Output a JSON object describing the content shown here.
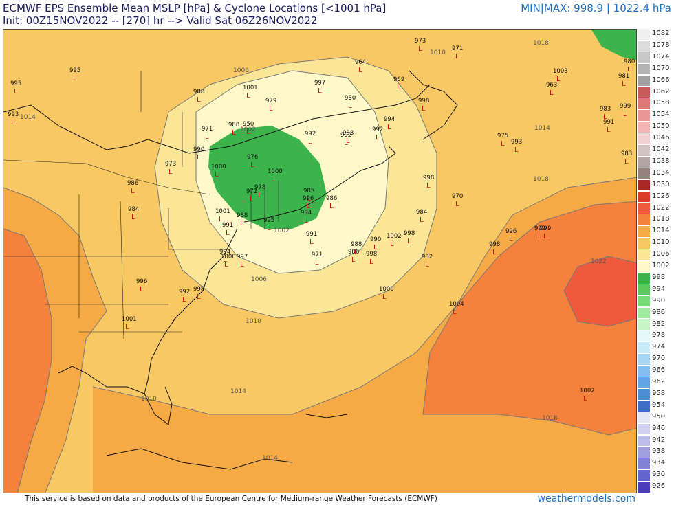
{
  "header": {
    "title_line1": "ECMWF EPS Ensemble Mean MSLP [hPa] & Cyclone Locations [<1001 hPa]",
    "title_line2": "Init: 00Z15NOV2022 -- [270] hr --> Valid Sat 06Z26NOV2022",
    "minmax": "MIN|MAX: 998.9 | 1022.4 hPa"
  },
  "colorbar": {
    "entries": [
      {
        "label": "1082",
        "color": "#f0f0f0"
      },
      {
        "label": "1078",
        "color": "#dcdcdc"
      },
      {
        "label": "1074",
        "color": "#c8c8c8"
      },
      {
        "label": "1070",
        "color": "#b4b4b4"
      },
      {
        "label": "1066",
        "color": "#a0a0a0"
      },
      {
        "label": "1062",
        "color": "#c85a5a"
      },
      {
        "label": "1058",
        "color": "#dc7878"
      },
      {
        "label": "1054",
        "color": "#eb9696"
      },
      {
        "label": "1050",
        "color": "#f5b4b4"
      },
      {
        "label": "1046",
        "color": "#f0d2d2"
      },
      {
        "label": "1042",
        "color": "#d2c3c3"
      },
      {
        "label": "1038",
        "color": "#b4a5a5"
      },
      {
        "label": "1034",
        "color": "#96827d"
      },
      {
        "label": "1030",
        "color": "#aa2828"
      },
      {
        "label": "1026",
        "color": "#dc3c28"
      },
      {
        "label": "1022",
        "color": "#f05a3c"
      },
      {
        "label": "1018",
        "color": "#f5823c"
      },
      {
        "label": "1014",
        "color": "#f5aa46"
      },
      {
        "label": "1010",
        "color": "#f8c864"
      },
      {
        "label": "1006",
        "color": "#fae696"
      },
      {
        "label": "1002",
        "color": "#fff8c8"
      },
      {
        "label": "998",
        "color": "#3cb44b"
      },
      {
        "label": "994",
        "color": "#5ac85a"
      },
      {
        "label": "990",
        "color": "#78dc78"
      },
      {
        "label": "986",
        "color": "#a0eba0"
      },
      {
        "label": "982",
        "color": "#c8f5c8"
      },
      {
        "label": "978",
        "color": "#e6f8fa"
      },
      {
        "label": "974",
        "color": "#c8ebfa"
      },
      {
        "label": "970",
        "color": "#a5d7f5"
      },
      {
        "label": "966",
        "color": "#82bef0"
      },
      {
        "label": "962",
        "color": "#64a5e6"
      },
      {
        "label": "958",
        "color": "#4b8cd7"
      },
      {
        "label": "954",
        "color": "#3c6ec8"
      },
      {
        "label": "950",
        "color": "#e6e6f5"
      },
      {
        "label": "946",
        "color": "#d2d2f0"
      },
      {
        "label": "942",
        "color": "#bebeeb"
      },
      {
        "label": "938",
        "color": "#a0a0e1"
      },
      {
        "label": "934",
        "color": "#8282d7"
      },
      {
        "label": "930",
        "color": "#6464cd"
      },
      {
        "label": "926",
        "color": "#4b3cbe"
      }
    ]
  },
  "isobar_labels": [
    "1006",
    "1010",
    "1014",
    "1018",
    "1022",
    "1002",
    "1010",
    "1014",
    "1018",
    "1014",
    "1002",
    "1006",
    "1010",
    "1014",
    "1018"
  ],
  "lows": [
    {
      "value": "995"
    },
    {
      "value": "995"
    },
    {
      "value": "993"
    },
    {
      "value": "988"
    },
    {
      "value": "1001"
    },
    {
      "value": "997"
    },
    {
      "value": "964"
    },
    {
      "value": "973"
    },
    {
      "value": "971"
    },
    {
      "value": "1003"
    },
    {
      "value": "980"
    },
    {
      "value": "981"
    },
    {
      "value": "963"
    },
    {
      "value": "969"
    },
    {
      "value": "998"
    },
    {
      "value": "979"
    },
    {
      "value": "980"
    },
    {
      "value": "983"
    },
    {
      "value": "999"
    },
    {
      "value": "991"
    },
    {
      "value": "971"
    },
    {
      "value": "988"
    },
    {
      "value": "950"
    },
    {
      "value": "992"
    },
    {
      "value": "994"
    },
    {
      "value": "992"
    },
    {
      "value": "990"
    },
    {
      "value": "976"
    },
    {
      "value": "975"
    },
    {
      "value": "993"
    },
    {
      "value": "983"
    },
    {
      "value": "973"
    },
    {
      "value": "1000"
    },
    {
      "value": "1000"
    },
    {
      "value": "986"
    },
    {
      "value": "978"
    },
    {
      "value": "998"
    },
    {
      "value": "988"
    },
    {
      "value": "970"
    },
    {
      "value": "972"
    },
    {
      "value": "984"
    },
    {
      "value": "985"
    },
    {
      "value": "996"
    },
    {
      "value": "986"
    },
    {
      "value": "1001"
    },
    {
      "value": "991"
    },
    {
      "value": "988"
    },
    {
      "value": "994"
    },
    {
      "value": "984"
    },
    {
      "value": "996"
    },
    {
      "value": "999"
    },
    {
      "value": "995"
    },
    {
      "value": "991"
    },
    {
      "value": "988"
    },
    {
      "value": "990"
    },
    {
      "value": "1002"
    },
    {
      "value": "998"
    },
    {
      "value": "994"
    },
    {
      "value": "997"
    },
    {
      "value": "971"
    },
    {
      "value": "986"
    },
    {
      "value": "998"
    },
    {
      "value": "982"
    },
    {
      "value": "998"
    },
    {
      "value": "992"
    },
    {
      "value": "992"
    },
    {
      "value": "1001"
    },
    {
      "value": "1000"
    },
    {
      "value": "1004"
    },
    {
      "value": "1002"
    },
    {
      "value": "1000"
    },
    {
      "value": "999"
    },
    {
      "value": "996"
    },
    {
      "value": "998"
    }
  ],
  "footer": {
    "credit": "This service is based on data and products of the European Centre for Medium-range Weather Forecasts (ECMWF)",
    "site": "weathermodels.com"
  }
}
